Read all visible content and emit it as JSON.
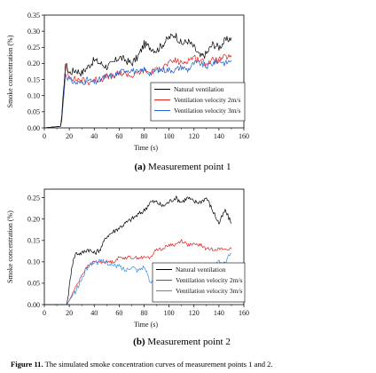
{
  "chart_data": [
    {
      "type": "line",
      "subtitle_label": "(a)",
      "subtitle_text": " Measurement point 1",
      "xlabel": "Time (s)",
      "ylabel": "Smoke concentration (%)",
      "xlim": [
        0,
        160
      ],
      "ylim": [
        0,
        0.35
      ],
      "xticks": [
        0,
        20,
        40,
        60,
        80,
        100,
        120,
        140,
        160
      ],
      "yticks": [
        "0.00",
        "0.05",
        "0.10",
        "0.15",
        "0.20",
        "0.25",
        "0.30",
        "0.35"
      ],
      "legend_position": "bottom-right",
      "series": [
        {
          "name": "Natural ventilation",
          "color": "#000000",
          "noise": 0.012,
          "x": [
            0,
            13,
            14,
            15,
            16,
            17,
            18,
            20,
            25,
            30,
            35,
            40,
            45,
            50,
            55,
            60,
            65,
            70,
            75,
            80,
            85,
            90,
            95,
            100,
            105,
            110,
            115,
            120,
            125,
            130,
            135,
            140,
            145,
            150
          ],
          "y": [
            0,
            0.005,
            0.03,
            0.09,
            0.15,
            0.2,
            0.19,
            0.17,
            0.18,
            0.17,
            0.19,
            0.21,
            0.2,
            0.19,
            0.2,
            0.22,
            0.21,
            0.2,
            0.22,
            0.26,
            0.25,
            0.24,
            0.26,
            0.28,
            0.29,
            0.26,
            0.27,
            0.25,
            0.22,
            0.23,
            0.26,
            0.25,
            0.27,
            0.28
          ]
        },
        {
          "name": "Ventilation velocity 2m/s",
          "color": "#e8211b",
          "noise": 0.01,
          "x": [
            0,
            13,
            14,
            15,
            16,
            17,
            18,
            20,
            25,
            30,
            35,
            40,
            45,
            50,
            55,
            60,
            65,
            70,
            75,
            80,
            85,
            90,
            95,
            100,
            105,
            110,
            115,
            120,
            125,
            130,
            135,
            140,
            145,
            150
          ],
          "y": [
            0,
            0.005,
            0.03,
            0.08,
            0.14,
            0.19,
            0.18,
            0.16,
            0.15,
            0.15,
            0.14,
            0.15,
            0.15,
            0.16,
            0.16,
            0.17,
            0.17,
            0.16,
            0.17,
            0.18,
            0.17,
            0.18,
            0.19,
            0.2,
            0.21,
            0.2,
            0.21,
            0.22,
            0.21,
            0.2,
            0.21,
            0.21,
            0.22,
            0.22
          ]
        },
        {
          "name": "Ventilation velocity 3m/s",
          "color": "#1f5fd1",
          "noise": 0.01,
          "x": [
            0,
            13,
            14,
            15,
            16,
            17,
            18,
            20,
            25,
            30,
            35,
            40,
            45,
            50,
            55,
            60,
            65,
            70,
            75,
            80,
            85,
            90,
            95,
            100,
            105,
            110,
            115,
            120,
            125,
            130,
            135,
            140,
            145,
            150
          ],
          "y": [
            0,
            0.005,
            0.03,
            0.07,
            0.12,
            0.17,
            0.16,
            0.15,
            0.14,
            0.14,
            0.15,
            0.14,
            0.15,
            0.16,
            0.16,
            0.17,
            0.18,
            0.18,
            0.17,
            0.18,
            0.17,
            0.18,
            0.18,
            0.18,
            0.18,
            0.19,
            0.18,
            0.2,
            0.2,
            0.19,
            0.2,
            0.21,
            0.2,
            0.21
          ]
        }
      ]
    },
    {
      "type": "line",
      "subtitle_label": "(b)",
      "subtitle_text": " Measurement point 2",
      "xlabel": "Time (s)",
      "ylabel": "Smoke concentration (%)",
      "xlim": [
        0,
        160
      ],
      "ylim": [
        0,
        0.27
      ],
      "xticks": [
        0,
        20,
        40,
        60,
        80,
        100,
        120,
        140,
        160
      ],
      "yticks": [
        "0.00",
        "0.05",
        "0.10",
        "0.15",
        "0.20",
        "0.25"
      ],
      "legend_position": "bottom-right",
      "series": [
        {
          "name": "Natural ventilation",
          "color": "#000000",
          "noise": 0.006,
          "x": [
            0,
            18,
            20,
            22,
            25,
            28,
            30,
            35,
            40,
            45,
            50,
            55,
            60,
            65,
            70,
            75,
            80,
            85,
            90,
            95,
            100,
            105,
            110,
            115,
            120,
            125,
            130,
            135,
            140,
            145,
            150
          ],
          "y": [
            0,
            0.0,
            0.04,
            0.09,
            0.12,
            0.12,
            0.12,
            0.13,
            0.12,
            0.13,
            0.16,
            0.17,
            0.18,
            0.19,
            0.2,
            0.21,
            0.22,
            0.24,
            0.24,
            0.23,
            0.24,
            0.25,
            0.24,
            0.25,
            0.24,
            0.24,
            0.25,
            0.22,
            0.19,
            0.22,
            0.19
          ]
        },
        {
          "name": "Ventilation velocity 2m/s",
          "color": "#e8211b",
          "noise": 0.004,
          "x": [
            0,
            18,
            20,
            25,
            30,
            35,
            40,
            45,
            50,
            55,
            60,
            65,
            70,
            75,
            80,
            85,
            90,
            95,
            100,
            105,
            110,
            115,
            120,
            125,
            130,
            135,
            140,
            145,
            150
          ],
          "y": [
            0,
            0.0,
            0.01,
            0.04,
            0.07,
            0.09,
            0.1,
            0.1,
            0.1,
            0.1,
            0.11,
            0.11,
            0.11,
            0.11,
            0.11,
            0.11,
            0.13,
            0.13,
            0.14,
            0.14,
            0.15,
            0.14,
            0.14,
            0.14,
            0.13,
            0.13,
            0.13,
            0.13,
            0.13
          ]
        },
        {
          "name": "Ventilation velocity 3m/s",
          "color": "#3a8ee6",
          "noise": 0.006,
          "x": [
            0,
            18,
            20,
            25,
            30,
            35,
            40,
            45,
            50,
            55,
            60,
            65,
            70,
            75,
            80,
            85,
            90,
            95,
            100,
            105,
            110,
            115,
            120,
            125,
            130,
            135,
            140,
            145,
            150
          ],
          "y": [
            0,
            0.0,
            0.01,
            0.03,
            0.06,
            0.09,
            0.1,
            0.1,
            0.1,
            0.09,
            0.09,
            0.08,
            0.09,
            0.08,
            0.09,
            0.05,
            0.07,
            0.04,
            0.07,
            0.09,
            0.08,
            0.08,
            0.07,
            0.08,
            0.08,
            0.09,
            0.1,
            0.1,
            0.12
          ]
        }
      ]
    }
  ],
  "caption": {
    "label": "Figure 11.",
    "text": " The simulated smoke concentration curves of measurement points 1 and 2."
  }
}
